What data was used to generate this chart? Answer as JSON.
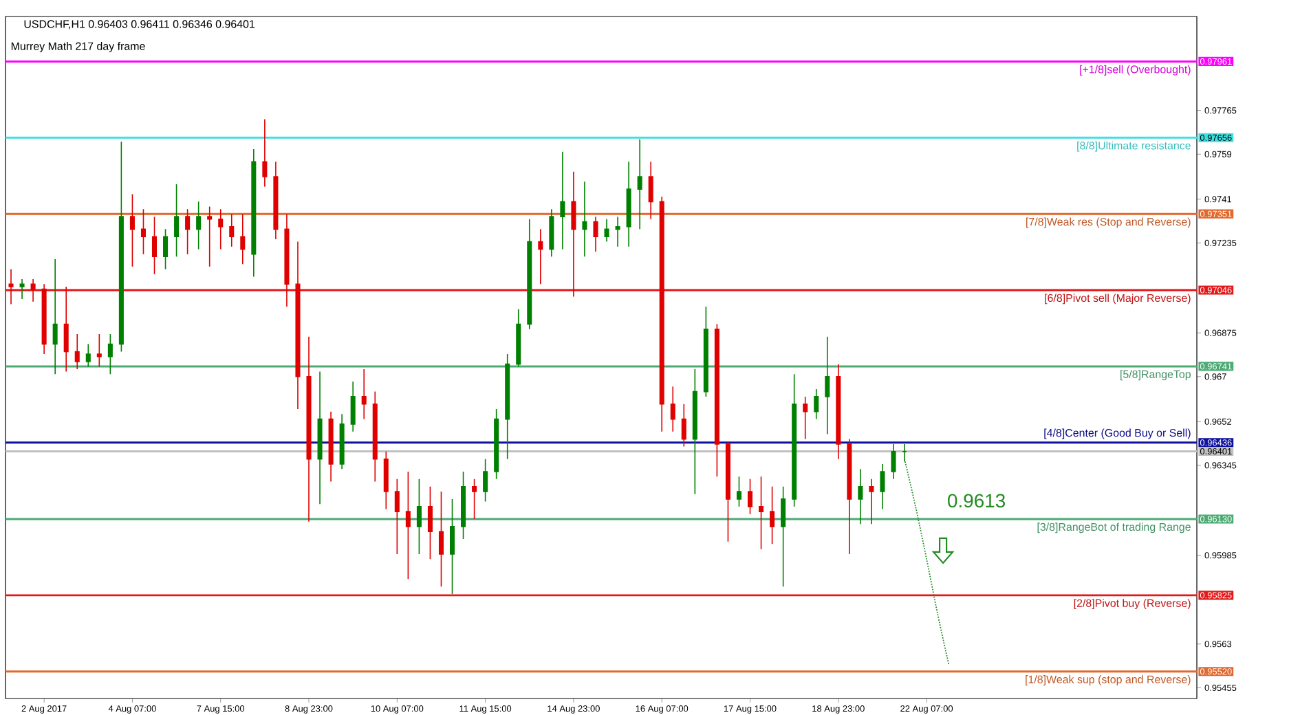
{
  "chart_data": {
    "type": "candlestick",
    "title": "USDCHF,H1  0.96403 0.96411 0.96346 0.96401",
    "subtitle": "Murrey Math 217 day frame",
    "categories": [
      null,
      null,
      null,
      "2 Aug 2017",
      null,
      null,
      null,
      null,
      null,
      null,
      null,
      "4 Aug 07:00",
      null,
      null,
      null,
      null,
      null,
      null,
      null,
      "7 Aug 15:00",
      null,
      null,
      null,
      null,
      null,
      null,
      null,
      "8 Aug 23:00",
      null,
      null,
      null,
      null,
      null,
      null,
      null,
      "10 Aug 07:00",
      null,
      null,
      null,
      null,
      null,
      null,
      null,
      "11 Aug 15:00",
      null,
      null,
      null,
      null,
      null,
      null,
      null,
      "14 Aug 23:00",
      null,
      null,
      null,
      null,
      null,
      null,
      null,
      "16 Aug 07:00",
      null,
      null,
      null,
      null,
      null,
      null,
      null,
      "17 Aug 15:00",
      null,
      null,
      null,
      null,
      null,
      null,
      null,
      "18 Aug 23:00",
      null,
      null,
      null,
      null,
      null,
      null,
      null,
      "22 Aug 07:00",
      null,
      null,
      null,
      null,
      null,
      null,
      null,
      null,
      null,
      null,
      null,
      null,
      null,
      null,
      null,
      null,
      null,
      null,
      null,
      null,
      null,
      null,
      null,
      null
    ],
    "ohlc": [
      [
        0.9707,
        0.9713,
        0.9699,
        0.9706
      ],
      [
        0.9706,
        0.9709,
        0.9701,
        0.9707
      ],
      [
        0.9707,
        0.9709,
        0.97,
        0.9705
      ],
      [
        0.9705,
        0.9707,
        0.9679,
        0.9683
      ],
      [
        0.9683,
        0.9717,
        0.9671,
        0.9691
      ],
      [
        0.9691,
        0.9706,
        0.9672,
        0.968
      ],
      [
        0.968,
        0.9687,
        0.9673,
        0.9676
      ],
      [
        0.9676,
        0.9683,
        0.9674,
        0.9679
      ],
      [
        0.9679,
        0.9687,
        0.9674,
        0.9678
      ],
      [
        0.9678,
        0.9687,
        0.9671,
        0.9683
      ],
      [
        0.9683,
        0.9764,
        0.968,
        0.9734
      ],
      [
        0.9734,
        0.9743,
        0.9714,
        0.9729
      ],
      [
        0.9729,
        0.9737,
        0.9719,
        0.9726
      ],
      [
        0.9726,
        0.9734,
        0.9711,
        0.9718
      ],
      [
        0.9718,
        0.9729,
        0.9713,
        0.9726
      ],
      [
        0.9726,
        0.9747,
        0.9718,
        0.9734
      ],
      [
        0.9734,
        0.9737,
        0.9719,
        0.9729
      ],
      [
        0.9729,
        0.974,
        0.9721,
        0.9734
      ],
      [
        0.9734,
        0.9738,
        0.9714,
        0.9733
      ],
      [
        0.9733,
        0.9737,
        0.9721,
        0.973
      ],
      [
        0.973,
        0.9735,
        0.9722,
        0.9726
      ],
      [
        0.9726,
        0.9735,
        0.9715,
        0.9721
      ],
      [
        0.9719,
        0.9761,
        0.971,
        0.9756
      ],
      [
        0.9756,
        0.9773,
        0.9746,
        0.975
      ],
      [
        0.975,
        0.9756,
        0.9725,
        0.9729
      ],
      [
        0.9729,
        0.9735,
        0.9698,
        0.9707
      ],
      [
        0.9707,
        0.9724,
        0.9657,
        0.967
      ],
      [
        0.967,
        0.9686,
        0.9612,
        0.9637
      ],
      [
        0.9637,
        0.9672,
        0.9619,
        0.9653
      ],
      [
        0.9653,
        0.9656,
        0.9628,
        0.9635
      ],
      [
        0.9635,
        0.9655,
        0.9633,
        0.9651
      ],
      [
        0.9651,
        0.9668,
        0.9648,
        0.9662
      ],
      [
        0.9662,
        0.9673,
        0.9653,
        0.9659
      ],
      [
        0.9659,
        0.9664,
        0.9628,
        0.9637
      ],
      [
        0.9637,
        0.964,
        0.9617,
        0.9624
      ],
      [
        0.9624,
        0.9629,
        0.9599,
        0.9616
      ],
      [
        0.9616,
        0.9632,
        0.9589,
        0.961
      ],
      [
        0.961,
        0.9629,
        0.9599,
        0.9618
      ],
      [
        0.9618,
        0.9626,
        0.9597,
        0.9608
      ],
      [
        0.9608,
        0.9624,
        0.9586,
        0.9599
      ],
      [
        0.9599,
        0.9621,
        0.9583,
        0.961
      ],
      [
        0.961,
        0.9632,
        0.9605,
        0.9626
      ],
      [
        0.9626,
        0.9629,
        0.9613,
        0.9624
      ],
      [
        0.9624,
        0.9637,
        0.962,
        0.9632
      ],
      [
        0.9632,
        0.9657,
        0.9629,
        0.9653
      ],
      [
        0.9653,
        0.9679,
        0.9637,
        0.9675
      ],
      [
        0.9675,
        0.9697,
        0.9674,
        0.9691
      ],
      [
        0.9691,
        0.9733,
        0.9689,
        0.9724
      ],
      [
        0.9724,
        0.9729,
        0.9707,
        0.9721
      ],
      [
        0.9721,
        0.9737,
        0.9718,
        0.9734
      ],
      [
        0.9734,
        0.976,
        0.9721,
        0.974
      ],
      [
        0.974,
        0.9752,
        0.9702,
        0.9729
      ],
      [
        0.9729,
        0.9748,
        0.9718,
        0.9732
      ],
      [
        0.9732,
        0.9734,
        0.972,
        0.9726
      ],
      [
        0.9726,
        0.9733,
        0.9724,
        0.9729
      ],
      [
        0.9729,
        0.9734,
        0.9722,
        0.973
      ],
      [
        0.973,
        0.9756,
        0.9722,
        0.9745
      ],
      [
        0.9745,
        0.9765,
        0.9729,
        0.975
      ],
      [
        0.975,
        0.9756,
        0.9733,
        0.974
      ],
      [
        0.974,
        0.9742,
        0.9648,
        0.9659
      ],
      [
        0.9659,
        0.9666,
        0.9648,
        0.9653
      ],
      [
        0.9653,
        0.9659,
        0.9642,
        0.9645
      ],
      [
        0.9645,
        0.9673,
        0.9623,
        0.9664
      ],
      [
        0.9664,
        0.9698,
        0.9662,
        0.9689
      ],
      [
        0.9689,
        0.9691,
        0.963,
        0.9643
      ],
      [
        0.9643,
        0.9644,
        0.9604,
        0.9621
      ],
      [
        0.9621,
        0.963,
        0.9618,
        0.9624
      ],
      [
        0.9624,
        0.9629,
        0.9615,
        0.9618
      ],
      [
        0.9618,
        0.963,
        0.9601,
        0.9616
      ],
      [
        0.9616,
        0.9626,
        0.9603,
        0.961
      ],
      [
        0.961,
        0.9626,
        0.9586,
        0.9621
      ],
      [
        0.9621,
        0.9671,
        0.9618,
        0.9659
      ],
      [
        0.9659,
        0.9662,
        0.9645,
        0.9656
      ],
      [
        0.9656,
        0.9665,
        0.9653,
        0.9662
      ],
      [
        0.9662,
        0.9686,
        0.9647,
        0.967
      ],
      [
        0.967,
        0.9675,
        0.9637,
        0.9643
      ],
      [
        0.9643,
        0.9645,
        0.9599,
        0.9621
      ],
      [
        0.9621,
        0.9633,
        0.9611,
        0.9626
      ],
      [
        0.9626,
        0.9629,
        0.9611,
        0.9624
      ],
      [
        0.9624,
        0.9635,
        0.9617,
        0.9632
      ],
      [
        0.9632,
        0.9643,
        0.9629,
        0.964
      ],
      [
        0.964,
        0.9643,
        0.9636,
        0.964
      ],
      null,
      null,
      null,
      null,
      null,
      null,
      null,
      null,
      null,
      null,
      null,
      null,
      null,
      null,
      null,
      null,
      null,
      null,
      null,
      null,
      null,
      null,
      null,
      null,
      null,
      null
    ],
    "series": [
      {
        "type": "line",
        "values": [
          null,
          null,
          null,
          null,
          null,
          null,
          null,
          null,
          null,
          null,
          null,
          null,
          null,
          null,
          null,
          null,
          null,
          null,
          null,
          null,
          null,
          null,
          null,
          null,
          null,
          null,
          null,
          null,
          null,
          null,
          null,
          null,
          null,
          null,
          null,
          null,
          null,
          null,
          null,
          null,
          null,
          null,
          null,
          null,
          null,
          null,
          null,
          null,
          null,
          null,
          null,
          null,
          null,
          null,
          null,
          null,
          null,
          null,
          null,
          null,
          null,
          null,
          null,
          null,
          null,
          null,
          null,
          null,
          null,
          null,
          null,
          null,
          null,
          null,
          null,
          null,
          null,
          null,
          null,
          null,
          null,
          0.9637,
          0.9618,
          0.9597,
          0.9575,
          0.9555,
          null,
          null,
          null,
          null,
          null,
          null,
          null,
          null,
          null,
          null,
          null,
          null,
          null,
          null,
          null,
          null,
          null,
          null,
          null,
          null,
          null,
          null
        ],
        "color": "#228b22",
        "line_style": "dotted",
        "marker": "none"
      }
    ],
    "ylim": [
      0.95412,
      0.98141
    ],
    "yticks": [
      {
        "value": 0.97961,
        "label": "0.97961"
      },
      0.97765,
      {
        "value": 0.97656,
        "label": "0.97656"
      },
      0.9759,
      0.9741,
      {
        "value": 0.97351,
        "label": "0.97351"
      },
      0.97235,
      {
        "value": 0.97046,
        "label": "0.97046"
      },
      0.96875,
      {
        "value": 0.96741,
        "label": "0.96741"
      },
      0.967,
      0.9652,
      {
        "value": 0.96436,
        "label": "0.96436"
      },
      {
        "value": 0.96401,
        "label": "0.96401"
      },
      0.96345,
      {
        "value": 0.9613,
        "label": "0.96130"
      },
      0.95985,
      {
        "value": 0.95825,
        "label": "0.95825"
      },
      0.9563,
      {
        "value": 0.9552,
        "label": "0.95520"
      },
      0.95455
    ],
    "ref_lines": [
      {
        "axis": "y",
        "value": 0.97961,
        "label": "[+1/8]sell (Overbought)",
        "color": "#ff00ff"
      },
      {
        "axis": "y",
        "value": 0.97656,
        "label": "[8/8]Ultimate resistance",
        "color": "#40e0e0"
      },
      {
        "axis": "y",
        "value": 0.97351,
        "label": "[7/8]Weak res (Stop and Reverse)",
        "color": "#e2682c"
      },
      {
        "axis": "y",
        "value": 0.97046,
        "label": "[6/8]Pivot sell (Major Reverse)",
        "color": "#e41818"
      },
      {
        "axis": "y",
        "value": 0.96741,
        "label": "[5/8]RangeTop",
        "color": "#4caa74"
      },
      {
        "axis": "y",
        "value": 0.96436,
        "label": "[4/8]Center (Good Buy or Sell)",
        "color": "#1010a0"
      },
      {
        "axis": "y",
        "value": 0.96401,
        "label": null,
        "color": "#c0c0c0"
      },
      {
        "axis": "y",
        "value": 0.9613,
        "label": "[3/8]RangeBot of trading Range",
        "color": "#4caa74"
      },
      {
        "axis": "y",
        "value": 0.95825,
        "label": "[2/8]Pivot buy (Reverse)",
        "color": "#e41818"
      },
      {
        "axis": "y",
        "value": 0.9552,
        "label": "[1/8]Weak sup (stop and Reverse)",
        "color": "#e2682c"
      }
    ],
    "annotations": [
      "0.9613"
    ],
    "grid": false
  }
}
